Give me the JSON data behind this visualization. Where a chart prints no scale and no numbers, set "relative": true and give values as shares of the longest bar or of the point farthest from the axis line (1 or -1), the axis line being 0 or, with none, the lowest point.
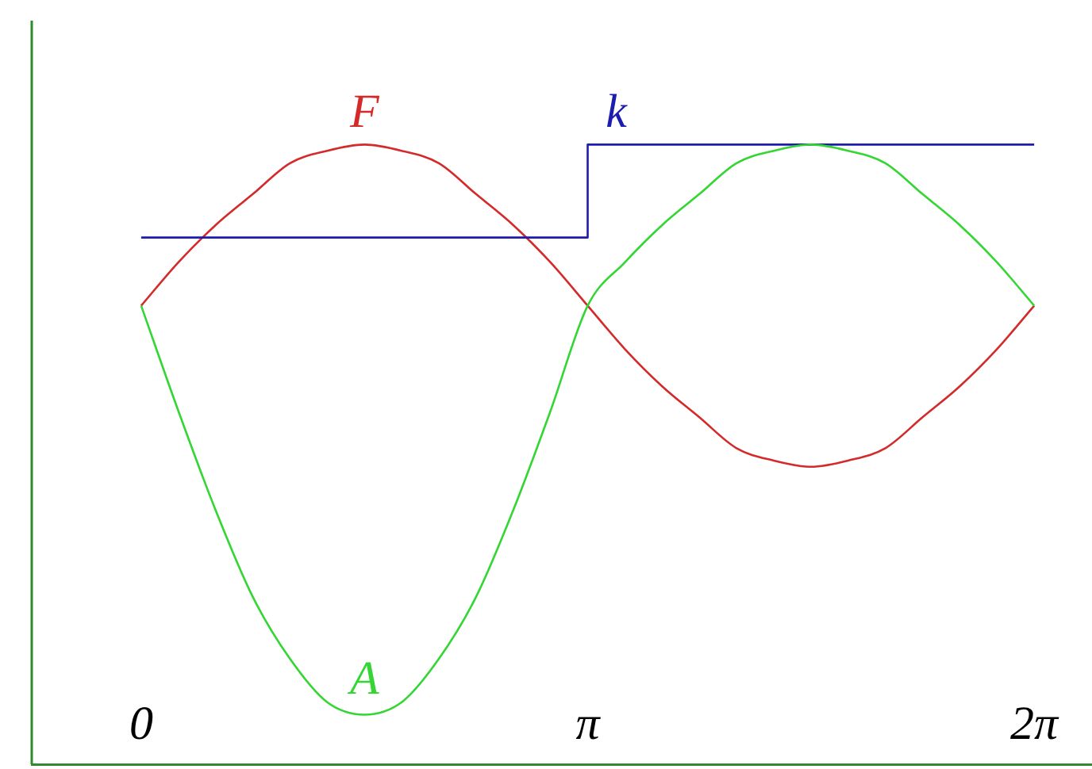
{
  "chart_data": {
    "type": "line",
    "relative": true,
    "xlim": [
      -0.77,
      6.69
    ],
    "xticks": [
      {
        "value": 0,
        "label": "0"
      },
      {
        "value": 3.1416,
        "label": "π"
      },
      {
        "value": 6.2832,
        "label": "2π"
      }
    ],
    "grid": false,
    "legend": false,
    "marker": "none",
    "line_style": "solid",
    "series": [
      {
        "name": "F",
        "color": "#d42a2a",
        "x": [
          0,
          0.2618,
          0.5236,
          0.7854,
          1.0472,
          1.309,
          1.5708,
          1.8326,
          2.0944,
          2.3562,
          2.618,
          2.8798,
          3.1416,
          3.4034,
          3.6652,
          3.927,
          4.1888,
          4.4506,
          4.7124,
          4.9742,
          5.236,
          5.4978,
          5.7596,
          6.0214,
          6.2832
        ],
        "values": [
          0.74,
          0.81,
          0.87,
          0.92,
          0.97,
          0.99,
          1.0,
          0.99,
          0.97,
          0.92,
          0.87,
          0.81,
          0.74,
          0.67,
          0.61,
          0.56,
          0.51,
          0.49,
          0.48,
          0.49,
          0.51,
          0.56,
          0.61,
          0.67,
          0.74
        ]
      },
      {
        "name": "k",
        "color": "#1c1cb0",
        "x": [
          0,
          3.1416,
          3.1416,
          6.2832
        ],
        "values": [
          0.85,
          0.85,
          1.0,
          1.0
        ]
      },
      {
        "name": "A",
        "color": "#33d633",
        "x": [
          0,
          0.2618,
          0.5236,
          0.7854,
          1.0472,
          1.309,
          1.5708,
          1.8326,
          2.0944,
          2.3562,
          2.618,
          2.8798,
          3.1416,
          3.4034,
          3.6652,
          3.927,
          4.1888,
          4.4506,
          4.7124,
          4.9742,
          5.236,
          5.4978,
          5.7596,
          6.0214,
          6.2832
        ],
        "values": [
          0.74,
          0.57,
          0.41,
          0.27,
          0.17,
          0.1,
          0.08,
          0.1,
          0.17,
          0.27,
          0.41,
          0.57,
          0.74,
          0.81,
          0.87,
          0.92,
          0.97,
          0.99,
          1.0,
          0.99,
          0.97,
          0.92,
          0.87,
          0.81,
          0.74
        ]
      }
    ]
  }
}
